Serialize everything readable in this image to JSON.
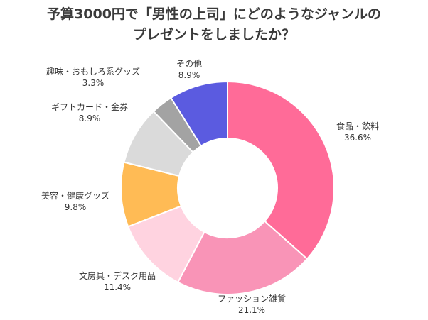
{
  "title": {
    "line1": "予算3000円で「男性の上司」にどのようなジャンルの",
    "line2": "プレゼントをしましたか？"
  },
  "chart_data": {
    "type": "pie",
    "subtype": "donut",
    "title": "予算3000円で「男性の上司」にどのようなジャンルのプレゼントをしましたか？",
    "unit": "%",
    "slices": [
      {
        "label": "食品・飲料",
        "value": 36.6,
        "display": "36.6%",
        "color": "#ff6b98"
      },
      {
        "label": "ファッション雑貨",
        "value": 21.1,
        "display": "21.1%",
        "color": "#f994b7"
      },
      {
        "label": "文房具・デスク用品",
        "value": 11.4,
        "display": "11.4%",
        "color": "#ffd3e0"
      },
      {
        "label": "美容・健康グッズ",
        "value": 9.8,
        "display": "9.8%",
        "color": "#ffbb55"
      },
      {
        "label": "ギフトカード・金券",
        "value": 8.9,
        "display": "8.9%",
        "color": "#dadada"
      },
      {
        "label": "趣味・おもしろ系グッズ",
        "value": 3.3,
        "display": "3.3%",
        "color": "#a3a3a3"
      },
      {
        "label": "その他",
        "value": 8.9,
        "display": "8.9%",
        "color": "#5b5be0"
      }
    ]
  }
}
